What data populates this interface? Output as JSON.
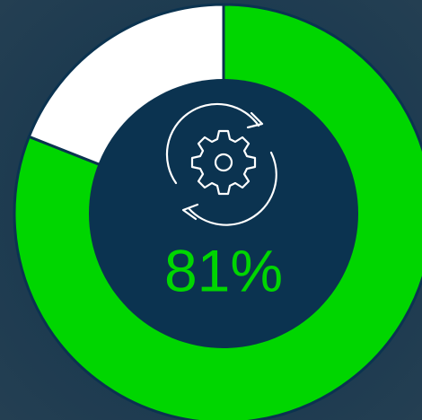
{
  "chart_data": {
    "type": "donut",
    "values": [
      81,
      19
    ],
    "value_labels": [
      "81%",
      null
    ],
    "colors": [
      "#00d600",
      "#ffffff"
    ]
  }
}
